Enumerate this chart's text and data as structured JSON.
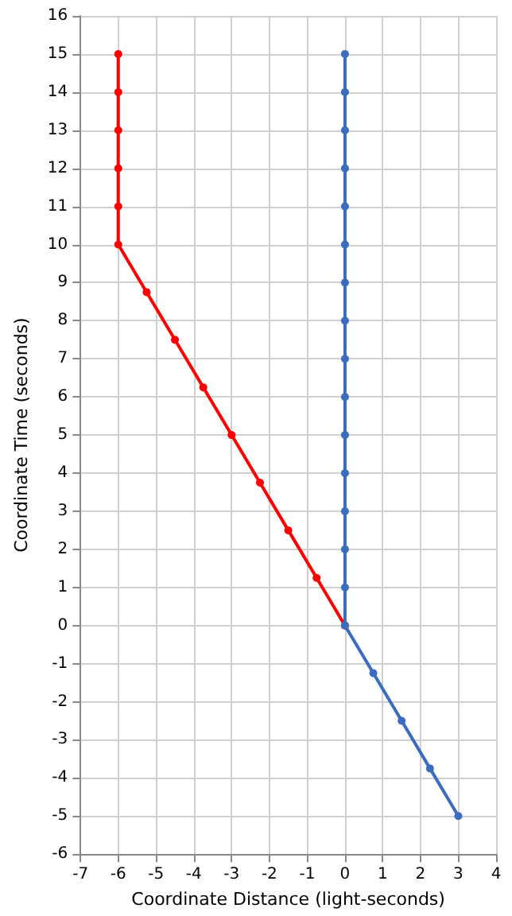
{
  "chart_data": {
    "type": "line",
    "xlabel": "Coordinate Distance (light-seconds)",
    "ylabel": "Coordinate Time (seconds)",
    "series": [
      {
        "color": "#ff0000",
        "x": [
          0,
          -0.75,
          -1.5,
          -2.25,
          -3,
          -3.75,
          -4.5,
          -5.25,
          -6,
          -6,
          -6,
          -6,
          -6,
          -6
        ],
        "values": [
          0,
          1.25,
          2.5,
          3.75,
          5,
          6.25,
          7.5,
          8.75,
          10,
          11,
          12,
          13,
          14,
          15
        ]
      },
      {
        "color": "#3a6cc0",
        "x": [
          3,
          2.25,
          1.5,
          0.75,
          0,
          0,
          0,
          0,
          0,
          0,
          0,
          0,
          0,
          0,
          0,
          0,
          0,
          0,
          0,
          0
        ],
        "values": [
          -5,
          -3.75,
          -2.5,
          -1.25,
          0,
          1,
          2,
          3,
          4,
          5,
          6,
          7,
          8,
          9,
          10,
          11,
          12,
          13,
          14,
          15
        ]
      }
    ],
    "xlim": [
      -7,
      4
    ],
    "xticks": [
      -7,
      -6,
      -5,
      -4,
      -3,
      -2,
      -1,
      0,
      1,
      2,
      3,
      4
    ],
    "ylim": [
      -6,
      16
    ],
    "yticks": [
      -6,
      -5,
      -4,
      -3,
      -2,
      -1,
      0,
      1,
      2,
      3,
      4,
      5,
      6,
      7,
      8,
      9,
      10,
      11,
      12,
      13,
      14,
      15,
      16
    ],
    "grid": true,
    "marker": "circle",
    "line_style": "solid"
  }
}
